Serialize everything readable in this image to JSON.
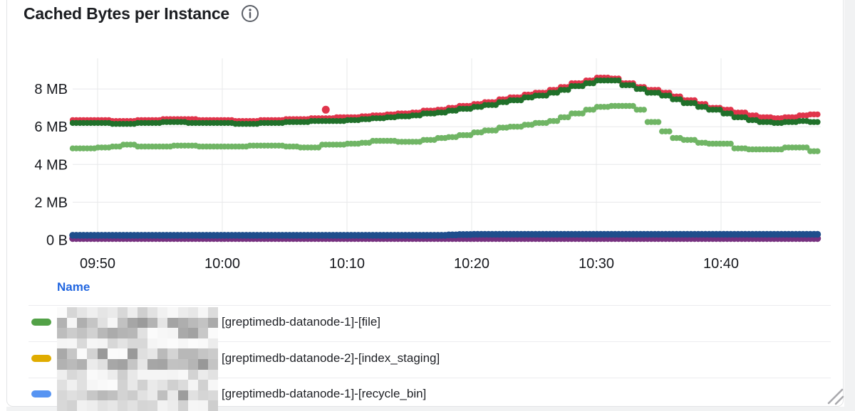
{
  "panel": {
    "title": "Cached Bytes per Instance",
    "info_icon": "info-circle-icon"
  },
  "chart_data": {
    "type": "line",
    "title": "Cached Bytes per Instance",
    "style": "dotted-points",
    "unit": "bytes",
    "ylim_mb": [
      0,
      9.6
    ],
    "grid": true,
    "x_start": "09:48",
    "x_end": "10:48",
    "x_step_minutes": 1,
    "y_ticks": [
      {
        "label": "0 B",
        "mb": 0
      },
      {
        "label": "2 MB",
        "mb": 2
      },
      {
        "label": "4 MB",
        "mb": 4
      },
      {
        "label": "6 MB",
        "mb": 6
      },
      {
        "label": "8 MB",
        "mb": 8
      }
    ],
    "x_ticks": [
      {
        "label": "09:50",
        "t": 2
      },
      {
        "label": "10:00",
        "t": 12
      },
      {
        "label": "10:10",
        "t": 22
      },
      {
        "label": "10:20",
        "t": 32
      },
      {
        "label": "10:30",
        "t": 42
      },
      {
        "label": "10:40",
        "t": 52
      }
    ],
    "series": [
      {
        "name": "series-red",
        "color": "#E0344B",
        "values": [
          6.35,
          6.35,
          6.35,
          6.3,
          6.3,
          6.35,
          6.35,
          6.4,
          6.4,
          6.4,
          6.35,
          6.35,
          6.35,
          6.3,
          6.3,
          6.35,
          6.35,
          6.4,
          6.4,
          6.45,
          6.45,
          6.5,
          6.5,
          6.55,
          6.6,
          6.65,
          6.7,
          6.75,
          6.85,
          6.9,
          7.0,
          7.1,
          7.2,
          7.3,
          7.45,
          7.55,
          7.7,
          7.8,
          7.95,
          8.1,
          8.3,
          8.45,
          8.6,
          8.55,
          8.3,
          8.1,
          7.95,
          7.8,
          7.6,
          7.4,
          7.2,
          7.0,
          6.9,
          6.75,
          6.6,
          6.5,
          6.45,
          6.5,
          6.6,
          6.65,
          6.65
        ]
      },
      {
        "name": "series-dark-green",
        "color": "#20702A",
        "values": [
          6.2,
          6.2,
          6.2,
          6.15,
          6.15,
          6.2,
          6.2,
          6.25,
          6.25,
          6.2,
          6.2,
          6.2,
          6.2,
          6.15,
          6.15,
          6.2,
          6.2,
          6.25,
          6.25,
          6.3,
          6.3,
          6.3,
          6.35,
          6.4,
          6.45,
          6.5,
          6.55,
          6.6,
          6.7,
          6.75,
          6.85,
          6.95,
          7.05,
          7.15,
          7.3,
          7.4,
          7.55,
          7.65,
          7.8,
          7.95,
          8.15,
          8.3,
          8.45,
          8.45,
          8.2,
          8.0,
          7.8,
          7.65,
          7.45,
          7.25,
          7.05,
          6.9,
          6.7,
          6.5,
          6.35,
          6.25,
          6.2,
          6.25,
          6.3,
          6.25,
          6.25
        ]
      },
      {
        "name": "series-light-green",
        "color": "#70B565",
        "values": [
          4.85,
          4.85,
          4.9,
          4.95,
          5.05,
          4.95,
          4.95,
          4.95,
          5.0,
          5.0,
          4.95,
          4.95,
          4.95,
          4.95,
          5.0,
          5.0,
          5.0,
          4.95,
          4.9,
          4.9,
          5.05,
          5.05,
          5.1,
          5.15,
          5.25,
          5.25,
          5.2,
          5.2,
          5.3,
          5.4,
          5.45,
          5.55,
          5.7,
          5.8,
          5.95,
          6.0,
          6.1,
          6.2,
          6.3,
          6.5,
          6.7,
          6.9,
          7.05,
          7.1,
          7.1,
          6.9,
          6.25,
          5.75,
          5.4,
          5.3,
          5.15,
          5.1,
          5.1,
          4.85,
          4.8,
          4.8,
          4.8,
          4.9,
          4.9,
          4.7,
          4.65
        ]
      },
      {
        "name": "series-purple",
        "color": "#76317F",
        "values": [
          0.08,
          0.08,
          0.08,
          0.08,
          0.08,
          0.08,
          0.08,
          0.08,
          0.08,
          0.08,
          0.08,
          0.08,
          0.08,
          0.08,
          0.08,
          0.08,
          0.08,
          0.08,
          0.08,
          0.08,
          0.08,
          0.08,
          0.08,
          0.08,
          0.08,
          0.08,
          0.08,
          0.08,
          0.08,
          0.08,
          0.08,
          0.08,
          0.08,
          0.08,
          0.08,
          0.08,
          0.08,
          0.08,
          0.08,
          0.08,
          0.08,
          0.08,
          0.08,
          0.08,
          0.08,
          0.08,
          0.08,
          0.08,
          0.08,
          0.08,
          0.08,
          0.08,
          0.08,
          0.08,
          0.08,
          0.08,
          0.08,
          0.08,
          0.08,
          0.08,
          0.08
        ]
      },
      {
        "name": "series-navy",
        "color": "#1F4E8C",
        "values": [
          0.25,
          0.25,
          0.25,
          0.25,
          0.25,
          0.25,
          0.25,
          0.25,
          0.25,
          0.25,
          0.25,
          0.25,
          0.25,
          0.25,
          0.25,
          0.25,
          0.25,
          0.25,
          0.25,
          0.25,
          0.25,
          0.25,
          0.25,
          0.25,
          0.25,
          0.25,
          0.25,
          0.25,
          0.25,
          0.25,
          0.27,
          0.29,
          0.3,
          0.3,
          0.3,
          0.3,
          0.3,
          0.3,
          0.3,
          0.3,
          0.3,
          0.3,
          0.3,
          0.3,
          0.3,
          0.3,
          0.3,
          0.3,
          0.3,
          0.3,
          0.3,
          0.3,
          0.3,
          0.3,
          0.3,
          0.3,
          0.3,
          0.3,
          0.3,
          0.3,
          0.3
        ]
      }
    ],
    "outlier": {
      "series": "series-red",
      "t": 20.3,
      "mb": 6.9
    }
  },
  "legend": {
    "header": "Name",
    "rows": [
      {
        "color": "#52A147",
        "redacted_prefix": true,
        "label": "[greptimedb-datanode-1]-[file]"
      },
      {
        "color": "#E0AC00",
        "redacted_prefix": true,
        "label": "[greptimedb-datanode-2]-[index_staging]"
      },
      {
        "color": "#5794F2",
        "redacted_prefix": true,
        "label": "[greptimedb-datanode-1]-[recycle_bin]"
      }
    ]
  }
}
